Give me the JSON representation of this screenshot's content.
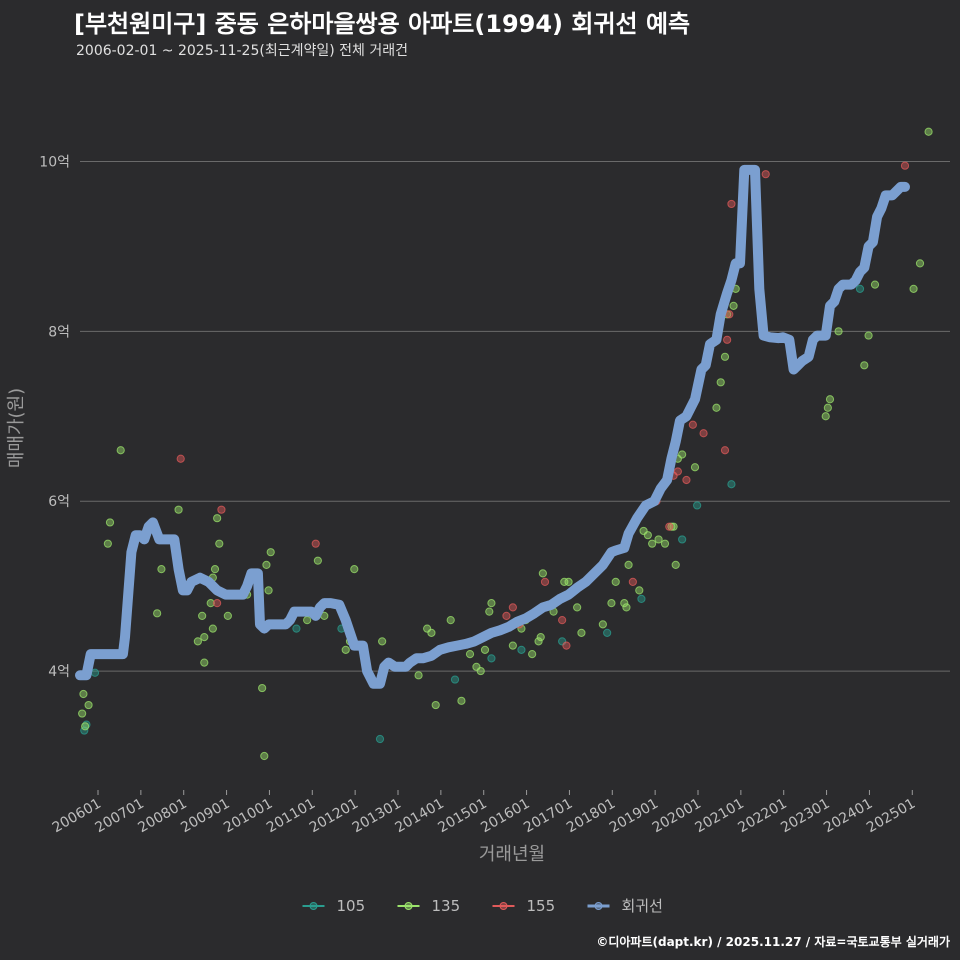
{
  "chart_data": {
    "type": "scatter+line",
    "title": "[부천원미구] 중동 은하마을쌍용 아파트(1994) 회귀선 예측",
    "subtitle": "2006-02-01 ~ 2025-11-25(최근계약일) 전체 거래건",
    "xlabel": "거래년월",
    "ylabel": "매매가(원)",
    "caption": "©디아파트(dapt.kr) / 2025.11.27 / 자료=국토교통부 실거래가",
    "y_unit": "억",
    "ylim": [
      2.6,
      10.9
    ],
    "xlim": [
      2006.0,
      2026.3
    ],
    "y_ticks": [
      {
        "value": 4,
        "label": "4억"
      },
      {
        "value": 6,
        "label": "6억"
      },
      {
        "value": 8,
        "label": "8억"
      },
      {
        "value": 10,
        "label": "10억"
      }
    ],
    "x_ticks": [
      {
        "value": 2006.42,
        "label": "200601"
      },
      {
        "value": 2007.42,
        "label": "200701"
      },
      {
        "value": 2008.42,
        "label": "200801"
      },
      {
        "value": 2009.42,
        "label": "200901"
      },
      {
        "value": 2010.42,
        "label": "201001"
      },
      {
        "value": 2011.42,
        "label": "201101"
      },
      {
        "value": 2012.42,
        "label": "201201"
      },
      {
        "value": 2013.42,
        "label": "201301"
      },
      {
        "value": 2014.42,
        "label": "201401"
      },
      {
        "value": 2015.42,
        "label": "201501"
      },
      {
        "value": 2016.42,
        "label": "201601"
      },
      {
        "value": 2017.42,
        "label": "201701"
      },
      {
        "value": 2018.42,
        "label": "201801"
      },
      {
        "value": 2019.42,
        "label": "201901"
      },
      {
        "value": 2020.42,
        "label": "202001"
      },
      {
        "value": 2021.42,
        "label": "202101"
      },
      {
        "value": 2022.42,
        "label": "202201"
      },
      {
        "value": 2023.42,
        "label": "202301"
      },
      {
        "value": 2024.42,
        "label": "202401"
      },
      {
        "value": 2025.42,
        "label": "202501"
      }
    ],
    "legend": [
      {
        "name": "105",
        "color": "#2a9d8f",
        "kind": "point"
      },
      {
        "name": "135",
        "color": "#9be36b",
        "kind": "point"
      },
      {
        "name": "155",
        "color": "#e05a5a",
        "kind": "point"
      },
      {
        "name": "회귀선",
        "color": "#7b9fd0",
        "kind": "line"
      }
    ],
    "legend_position": "bottom",
    "series": [
      {
        "name": "105",
        "color": "#2a9d8f",
        "points": [
          [
            2006.1,
            3.3
          ],
          [
            2006.15,
            3.37
          ],
          [
            2006.35,
            3.98
          ],
          [
            2011.05,
            4.5
          ],
          [
            2012.1,
            4.5
          ],
          [
            2013.0,
            3.2
          ],
          [
            2014.75,
            3.9
          ],
          [
            2015.6,
            4.15
          ],
          [
            2016.3,
            4.25
          ],
          [
            2017.25,
            4.35
          ],
          [
            2018.3,
            4.45
          ],
          [
            2019.1,
            4.85
          ],
          [
            2020.05,
            5.55
          ],
          [
            2020.4,
            5.95
          ],
          [
            2021.2,
            6.2
          ],
          [
            2024.2,
            8.5
          ]
        ]
      },
      {
        "name": "135",
        "color": "#9be36b",
        "points": [
          [
            2006.05,
            3.5
          ],
          [
            2006.08,
            3.73
          ],
          [
            2006.2,
            3.6
          ],
          [
            2006.12,
            3.35
          ],
          [
            2006.65,
            5.5
          ],
          [
            2006.7,
            5.75
          ],
          [
            2006.95,
            6.6
          ],
          [
            2007.8,
            4.68
          ],
          [
            2007.9,
            5.2
          ],
          [
            2008.3,
            5.9
          ],
          [
            2008.75,
            4.35
          ],
          [
            2008.85,
            4.65
          ],
          [
            2008.9,
            4.4
          ],
          [
            2008.9,
            4.1
          ],
          [
            2009.05,
            4.8
          ],
          [
            2009.1,
            5.1
          ],
          [
            2009.1,
            4.5
          ],
          [
            2009.15,
            5.2
          ],
          [
            2009.2,
            5.8
          ],
          [
            2009.25,
            5.5
          ],
          [
            2009.45,
            4.65
          ],
          [
            2009.9,
            4.9
          ],
          [
            2010.25,
            3.8
          ],
          [
            2010.3,
            3.0
          ],
          [
            2010.35,
            5.25
          ],
          [
            2010.4,
            4.95
          ],
          [
            2010.45,
            5.4
          ],
          [
            2011.25,
            4.7
          ],
          [
            2011.3,
            4.6
          ],
          [
            2011.55,
            5.3
          ],
          [
            2011.7,
            4.65
          ],
          [
            2012.2,
            4.25
          ],
          [
            2012.3,
            4.35
          ],
          [
            2012.4,
            5.2
          ],
          [
            2013.05,
            4.35
          ],
          [
            2013.5,
            4.05
          ],
          [
            2013.9,
            3.95
          ],
          [
            2014.1,
            4.5
          ],
          [
            2014.2,
            4.45
          ],
          [
            2014.3,
            3.6
          ],
          [
            2014.65,
            4.6
          ],
          [
            2014.9,
            3.65
          ],
          [
            2015.1,
            4.2
          ],
          [
            2015.25,
            4.05
          ],
          [
            2015.35,
            4.0
          ],
          [
            2015.45,
            4.25
          ],
          [
            2015.55,
            4.7
          ],
          [
            2015.6,
            4.8
          ],
          [
            2016.1,
            4.3
          ],
          [
            2016.3,
            4.5
          ],
          [
            2016.4,
            4.6
          ],
          [
            2016.55,
            4.2
          ],
          [
            2016.7,
            4.35
          ],
          [
            2016.75,
            4.4
          ],
          [
            2016.8,
            5.15
          ],
          [
            2017.05,
            4.7
          ],
          [
            2017.3,
            5.05
          ],
          [
            2017.4,
            5.05
          ],
          [
            2017.5,
            4.95
          ],
          [
            2017.6,
            4.75
          ],
          [
            2017.7,
            4.45
          ],
          [
            2018.2,
            4.55
          ],
          [
            2018.4,
            4.8
          ],
          [
            2018.5,
            5.05
          ],
          [
            2018.7,
            4.8
          ],
          [
            2018.75,
            4.75
          ],
          [
            2018.8,
            5.25
          ],
          [
            2019.05,
            4.95
          ],
          [
            2019.15,
            5.65
          ],
          [
            2019.25,
            5.6
          ],
          [
            2019.35,
            5.5
          ],
          [
            2019.5,
            5.55
          ],
          [
            2019.65,
            5.5
          ],
          [
            2019.8,
            5.7
          ],
          [
            2019.85,
            5.7
          ],
          [
            2019.9,
            5.25
          ],
          [
            2019.95,
            6.5
          ],
          [
            2020.05,
            6.55
          ],
          [
            2020.35,
            6.4
          ],
          [
            2020.85,
            7.1
          ],
          [
            2020.95,
            7.4
          ],
          [
            2021.05,
            7.7
          ],
          [
            2021.1,
            8.2
          ],
          [
            2021.2,
            8.6
          ],
          [
            2021.25,
            8.3
          ],
          [
            2021.3,
            8.5
          ],
          [
            2023.4,
            7.0
          ],
          [
            2023.45,
            7.1
          ],
          [
            2023.5,
            7.2
          ],
          [
            2023.7,
            8.0
          ],
          [
            2024.3,
            7.6
          ],
          [
            2024.4,
            7.95
          ],
          [
            2024.55,
            8.55
          ],
          [
            2025.45,
            8.5
          ],
          [
            2025.6,
            8.8
          ],
          [
            2025.8,
            10.35
          ]
        ]
      },
      {
        "name": "155",
        "color": "#e05a5a",
        "points": [
          [
            2008.35,
            6.5
          ],
          [
            2009.2,
            4.8
          ],
          [
            2009.3,
            5.9
          ],
          [
            2011.5,
            5.5
          ],
          [
            2015.95,
            4.65
          ],
          [
            2016.1,
            4.75
          ],
          [
            2016.25,
            4.55
          ],
          [
            2016.85,
            5.05
          ],
          [
            2017.25,
            4.6
          ],
          [
            2017.35,
            4.3
          ],
          [
            2018.1,
            5.2
          ],
          [
            2018.9,
            5.05
          ],
          [
            2019.45,
            6.0
          ],
          [
            2019.75,
            5.7
          ],
          [
            2019.85,
            6.3
          ],
          [
            2019.95,
            6.35
          ],
          [
            2020.15,
            6.25
          ],
          [
            2020.3,
            6.9
          ],
          [
            2020.55,
            6.8
          ],
          [
            2021.05,
            6.6
          ],
          [
            2021.1,
            7.9
          ],
          [
            2021.15,
            8.2
          ],
          [
            2021.2,
            9.5
          ],
          [
            2022.0,
            9.85
          ],
          [
            2025.25,
            9.95
          ]
        ]
      }
    ],
    "regression": [
      [
        2006.0,
        3.95
      ],
      [
        2006.15,
        3.95
      ],
      [
        2006.25,
        4.2
      ],
      [
        2006.4,
        4.2
      ],
      [
        2007.0,
        4.2
      ],
      [
        2007.05,
        4.4
      ],
      [
        2007.2,
        5.4
      ],
      [
        2007.3,
        5.6
      ],
      [
        2007.4,
        5.6
      ],
      [
        2007.5,
        5.55
      ],
      [
        2007.6,
        5.7
      ],
      [
        2007.7,
        5.75
      ],
      [
        2007.85,
        5.55
      ],
      [
        2008.0,
        5.55
      ],
      [
        2008.2,
        5.55
      ],
      [
        2008.3,
        5.2
      ],
      [
        2008.4,
        4.95
      ],
      [
        2008.5,
        4.95
      ],
      [
        2008.6,
        5.05
      ],
      [
        2008.8,
        5.1
      ],
      [
        2009.0,
        5.05
      ],
      [
        2009.2,
        4.95
      ],
      [
        2009.4,
        4.9
      ],
      [
        2009.6,
        4.9
      ],
      [
        2009.8,
        4.9
      ],
      [
        2009.9,
        5.0
      ],
      [
        2010.0,
        5.15
      ],
      [
        2010.15,
        5.15
      ],
      [
        2010.2,
        4.55
      ],
      [
        2010.3,
        4.5
      ],
      [
        2010.4,
        4.55
      ],
      [
        2010.6,
        4.55
      ],
      [
        2010.8,
        4.55
      ],
      [
        2010.9,
        4.6
      ],
      [
        2011.0,
        4.7
      ],
      [
        2011.2,
        4.7
      ],
      [
        2011.4,
        4.7
      ],
      [
        2011.5,
        4.65
      ],
      [
        2011.6,
        4.75
      ],
      [
        2011.7,
        4.8
      ],
      [
        2011.85,
        4.8
      ],
      [
        2012.05,
        4.78
      ],
      [
        2012.2,
        4.6
      ],
      [
        2012.3,
        4.45
      ],
      [
        2012.4,
        4.3
      ],
      [
        2012.6,
        4.3
      ],
      [
        2012.7,
        4.0
      ],
      [
        2012.85,
        3.85
      ],
      [
        2013.0,
        3.85
      ],
      [
        2013.1,
        4.05
      ],
      [
        2013.2,
        4.1
      ],
      [
        2013.35,
        4.05
      ],
      [
        2013.5,
        4.05
      ],
      [
        2013.6,
        4.05
      ],
      [
        2013.7,
        4.1
      ],
      [
        2013.85,
        4.15
      ],
      [
        2014.0,
        4.15
      ],
      [
        2014.2,
        4.18
      ],
      [
        2014.4,
        4.25
      ],
      [
        2014.6,
        4.28
      ],
      [
        2014.8,
        4.3
      ],
      [
        2015.0,
        4.32
      ],
      [
        2015.2,
        4.35
      ],
      [
        2015.4,
        4.4
      ],
      [
        2015.6,
        4.45
      ],
      [
        2015.8,
        4.48
      ],
      [
        2016.0,
        4.52
      ],
      [
        2016.2,
        4.58
      ],
      [
        2016.4,
        4.62
      ],
      [
        2016.6,
        4.68
      ],
      [
        2016.8,
        4.75
      ],
      [
        2017.0,
        4.78
      ],
      [
        2017.2,
        4.85
      ],
      [
        2017.4,
        4.9
      ],
      [
        2017.6,
        4.98
      ],
      [
        2017.8,
        5.05
      ],
      [
        2018.0,
        5.15
      ],
      [
        2018.2,
        5.25
      ],
      [
        2018.4,
        5.4
      ],
      [
        2018.5,
        5.42
      ],
      [
        2018.7,
        5.45
      ],
      [
        2018.8,
        5.62
      ],
      [
        2019.0,
        5.8
      ],
      [
        2019.2,
        5.95
      ],
      [
        2019.4,
        6.0
      ],
      [
        2019.55,
        6.15
      ],
      [
        2019.7,
        6.25
      ],
      [
        2019.8,
        6.5
      ],
      [
        2019.9,
        6.7
      ],
      [
        2020.0,
        6.95
      ],
      [
        2020.15,
        7.0
      ],
      [
        2020.25,
        7.1
      ],
      [
        2020.35,
        7.2
      ],
      [
        2020.5,
        7.55
      ],
      [
        2020.6,
        7.6
      ],
      [
        2020.7,
        7.85
      ],
      [
        2020.85,
        7.9
      ],
      [
        2020.95,
        8.2
      ],
      [
        2021.1,
        8.45
      ],
      [
        2021.2,
        8.6
      ],
      [
        2021.3,
        8.8
      ],
      [
        2021.4,
        8.8
      ],
      [
        2021.5,
        9.9
      ],
      [
        2021.65,
        9.9
      ],
      [
        2021.75,
        9.9
      ],
      [
        2021.85,
        8.5
      ],
      [
        2021.95,
        7.95
      ],
      [
        2022.1,
        7.93
      ],
      [
        2022.3,
        7.92
      ],
      [
        2022.4,
        7.93
      ],
      [
        2022.55,
        7.9
      ],
      [
        2022.65,
        7.55
      ],
      [
        2022.75,
        7.6
      ],
      [
        2022.85,
        7.65
      ],
      [
        2023.0,
        7.7
      ],
      [
        2023.1,
        7.9
      ],
      [
        2023.2,
        7.95
      ],
      [
        2023.4,
        7.95
      ],
      [
        2023.5,
        8.3
      ],
      [
        2023.6,
        8.35
      ],
      [
        2023.7,
        8.5
      ],
      [
        2023.8,
        8.55
      ],
      [
        2023.9,
        8.55
      ],
      [
        2024.0,
        8.55
      ],
      [
        2024.1,
        8.6
      ],
      [
        2024.2,
        8.7
      ],
      [
        2024.3,
        8.75
      ],
      [
        2024.4,
        9.0
      ],
      [
        2024.5,
        9.05
      ],
      [
        2024.6,
        9.35
      ],
      [
        2024.7,
        9.45
      ],
      [
        2024.8,
        9.6
      ],
      [
        2024.95,
        9.6
      ],
      [
        2025.05,
        9.65
      ],
      [
        2025.15,
        9.7
      ],
      [
        2025.25,
        9.7
      ]
    ]
  }
}
